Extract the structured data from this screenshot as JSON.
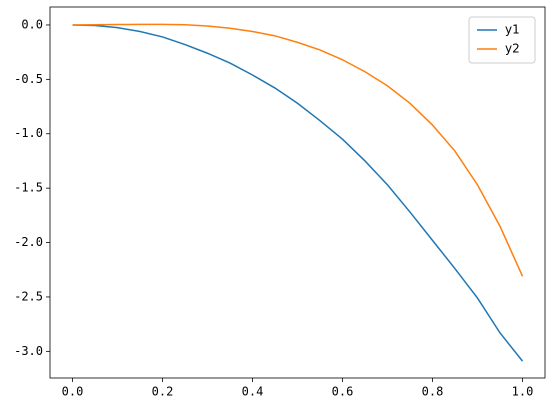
{
  "chart_data": {
    "type": "line",
    "x": [
      0,
      0.05,
      0.1,
      0.15,
      0.2,
      0.25,
      0.3,
      0.35,
      0.4,
      0.45,
      0.5,
      0.55,
      0.6,
      0.65,
      0.7,
      0.75,
      0.8,
      0.85,
      0.9,
      0.95,
      1
    ],
    "series": [
      {
        "name": "y1",
        "color": "#1f77b4",
        "values": [
          0,
          -0.005,
          -0.025,
          -0.06,
          -0.11,
          -0.18,
          -0.26,
          -0.35,
          -0.46,
          -0.58,
          -0.72,
          -0.88,
          -1.05,
          -1.25,
          -1.47,
          -1.72,
          -1.98,
          -2.24,
          -2.51,
          -2.83,
          -3.09
        ]
      },
      {
        "name": "y2",
        "color": "#ff7f0e",
        "values": [
          0,
          0.002,
          0.004,
          0.005,
          0.005,
          0.002,
          -0.01,
          -0.03,
          -0.06,
          -0.1,
          -0.16,
          -0.23,
          -0.32,
          -0.43,
          -0.56,
          -0.72,
          -0.92,
          -1.16,
          -1.47,
          -1.85,
          -2.31
        ]
      }
    ],
    "xlim": [
      -0.05,
      1.05
    ],
    "ylim": [
      -3.245,
      0.165
    ],
    "xticks": [
      {
        "value": 0,
        "label": "0.0"
      },
      0.2,
      0.4,
      0.6,
      0.8,
      {
        "value": 1,
        "label": "1.0"
      }
    ],
    "yticks": [
      {
        "value": 0,
        "label": "0.0"
      },
      -0.5,
      {
        "value": -1,
        "label": "-1.0"
      },
      -1.5,
      {
        "value": -2,
        "label": "-2.0"
      },
      -2.5,
      {
        "value": -3,
        "label": "-3.0"
      }
    ],
    "legend": "upper right"
  }
}
